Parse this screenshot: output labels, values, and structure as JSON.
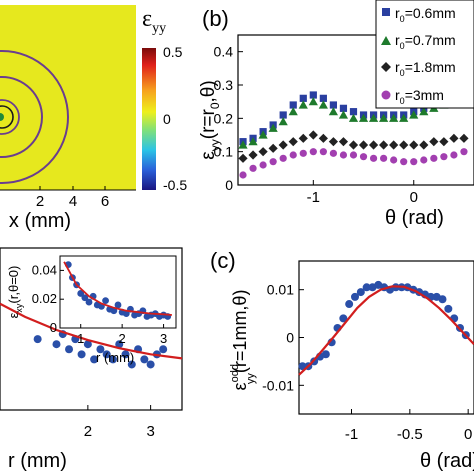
{
  "chart_data": [
    {
      "type": "heatmap",
      "panel": "a",
      "xlabel": "x (mm)",
      "xticks": [
        "2",
        "4",
        "6"
      ],
      "xlim": [
        -1,
        7
      ],
      "colorbar": {
        "label": "ε yy",
        "ticks": [
          "0.5",
          "0",
          "-0.5"
        ],
        "range": [
          -0.5,
          0.5
        ]
      },
      "contour_radii": [
        0.6,
        0.7,
        1.8,
        3
      ],
      "colors": {
        "field": "#e6e81e",
        "contour": "#6a3d8f"
      }
    },
    {
      "type": "scatter",
      "panel": "b",
      "label": "(b)",
      "xlabel": "θ (rad)",
      "ylabel": "εyy(r=r0,θ)",
      "xlim": [
        -1.75,
        0.6
      ],
      "ylim": [
        0,
        0.45
      ],
      "xticks": [
        "-1",
        "0"
      ],
      "yticks": [
        "0",
        "0.1",
        "0.2",
        "0.3",
        "0.4"
      ],
      "legend_position": "top-right",
      "series": [
        {
          "name": "r0=0.6mm",
          "legend": "r",
          "sub": "0",
          "rest": "=0.6mm",
          "marker": "square",
          "color": "#2a3fa0",
          "x": [
            -1.7,
            -1.6,
            -1.5,
            -1.4,
            -1.3,
            -1.2,
            -1.1,
            -1.0,
            -0.9,
            -0.8,
            -0.7,
            -0.6,
            -0.5,
            -0.4,
            -0.3,
            -0.2,
            -0.1,
            0.0,
            0.1,
            0.2,
            0.3,
            0.4,
            0.5
          ],
          "values": [
            0.13,
            0.14,
            0.16,
            0.18,
            0.21,
            0.24,
            0.26,
            0.27,
            0.26,
            0.24,
            0.23,
            0.22,
            0.21,
            0.21,
            0.21,
            0.21,
            0.21,
            0.22,
            0.23,
            0.24,
            0.26,
            0.27,
            0.27
          ]
        },
        {
          "name": "r0=0.7mm",
          "legend": "r",
          "sub": "0",
          "rest": "=0.7mm",
          "marker": "triangle",
          "color": "#1e7a2c",
          "x": [
            -1.7,
            -1.6,
            -1.5,
            -1.4,
            -1.3,
            -1.2,
            -1.1,
            -1.0,
            -0.9,
            -0.8,
            -0.7,
            -0.6,
            -0.5,
            -0.4,
            -0.3,
            -0.2,
            -0.1,
            0.0,
            0.1,
            0.2,
            0.3,
            0.4,
            0.5
          ],
          "values": [
            0.12,
            0.13,
            0.15,
            0.17,
            0.19,
            0.22,
            0.24,
            0.25,
            0.24,
            0.22,
            0.21,
            0.2,
            0.2,
            0.2,
            0.2,
            0.2,
            0.2,
            0.21,
            0.22,
            0.23,
            0.24,
            0.25,
            0.25
          ]
        },
        {
          "name": "r0=1.8mm",
          "legend": "r",
          "sub": "0",
          "rest": "=1.8mm",
          "marker": "diamond",
          "color": "#222222",
          "x": [
            -1.7,
            -1.6,
            -1.5,
            -1.4,
            -1.3,
            -1.2,
            -1.1,
            -1.0,
            -0.9,
            -0.8,
            -0.7,
            -0.6,
            -0.5,
            -0.4,
            -0.3,
            -0.2,
            -0.1,
            0.0,
            0.1,
            0.2,
            0.3,
            0.4,
            0.5
          ],
          "values": [
            0.08,
            0.09,
            0.1,
            0.11,
            0.12,
            0.13,
            0.14,
            0.15,
            0.14,
            0.13,
            0.13,
            0.12,
            0.12,
            0.12,
            0.12,
            0.12,
            0.12,
            0.12,
            0.12,
            0.13,
            0.13,
            0.14,
            0.14
          ]
        },
        {
          "name": "r0=3mm",
          "legend": "r",
          "sub": "0",
          "rest": "=3mm",
          "marker": "circle",
          "color": "#a23fb0",
          "x": [
            -1.7,
            -1.6,
            -1.5,
            -1.4,
            -1.3,
            -1.2,
            -1.1,
            -1.0,
            -0.9,
            -0.8,
            -0.7,
            -0.6,
            -0.5,
            -0.4,
            -0.3,
            -0.2,
            -0.1,
            0.0,
            0.1,
            0.2,
            0.3,
            0.4,
            0.5
          ],
          "values": [
            0.03,
            0.05,
            0.06,
            0.07,
            0.08,
            0.09,
            0.095,
            0.1,
            0.1,
            0.095,
            0.09,
            0.09,
            0.085,
            0.08,
            0.08,
            0.075,
            0.07,
            0.07,
            0.075,
            0.08,
            0.085,
            0.09,
            0.1
          ]
        }
      ]
    },
    {
      "type": "scatter",
      "panel": "d",
      "xlabel": "r (mm)",
      "xlim": [
        0.6,
        3.5
      ],
      "ylim": [
        -0.004,
        0.012
      ],
      "xticks": [
        "2",
        "3"
      ],
      "series": [
        {
          "name": "data",
          "marker": "circle",
          "color": "#2a4fa8",
          "x": [
            0.7,
            0.8,
            0.9,
            1.0,
            1.1,
            1.2,
            1.3,
            1.4,
            1.5,
            1.6,
            1.7,
            1.8,
            1.9,
            2.0,
            2.1,
            2.2,
            2.3,
            2.4,
            2.5,
            2.6,
            2.7,
            2.8,
            2.9,
            3.0,
            3.1,
            3.2
          ],
          "values": [
            0.006,
            0.005,
            0.0055,
            0.004,
            0.0045,
            0.003,
            0.005,
            0.004,
            0.0025,
            0.0035,
            0.002,
            0.003,
            0.0015,
            0.0025,
            0.001,
            0.002,
            0.0015,
            0.001,
            0.0025,
            0.0015,
            0.0005,
            0.002,
            0.001,
            0.0005,
            0.0015,
            0.002
          ]
        },
        {
          "name": "fit",
          "type": "line",
          "color": "#d21e1e",
          "x": [
            0.6,
            1.0,
            1.5,
            2.0,
            2.5,
            3.0,
            3.5
          ],
          "values": [
            0.0065,
            0.0052,
            0.0039,
            0.0029,
            0.0021,
            0.0015,
            0.0011
          ]
        }
      ],
      "inset": {
        "ylabel": "εxy(r,θ=0)",
        "xlabel": "r (mm)",
        "xticks": [
          "1",
          "2",
          "3"
        ],
        "yticks": [
          "0.04",
          "0.02",
          "0"
        ],
        "xlim": [
          0.5,
          3.3
        ],
        "ylim": [
          0,
          0.05
        ],
        "points": {
          "x": [
            0.7,
            0.8,
            0.9,
            1.0,
            1.1,
            1.2,
            1.3,
            1.4,
            1.5,
            1.6,
            1.7,
            1.8,
            1.9,
            2.0,
            2.1,
            2.2,
            2.3,
            2.4,
            2.5,
            2.6,
            2.7,
            2.8,
            2.9,
            3.0,
            3.1
          ],
          "values": [
            0.044,
            0.035,
            0.03,
            0.024,
            0.021,
            0.018,
            0.022,
            0.016,
            0.015,
            0.019,
            0.013,
            0.012,
            0.016,
            0.011,
            0.01,
            0.013,
            0.009,
            0.01,
            0.012,
            0.008,
            0.009,
            0.01,
            0.008,
            0.009,
            0.008
          ]
        },
        "fit": {
          "x": [
            0.6,
            0.9,
            1.2,
            1.5,
            1.8,
            2.1,
            2.4,
            2.7,
            3.0,
            3.2
          ],
          "values": [
            0.046,
            0.03,
            0.022,
            0.017,
            0.014,
            0.012,
            0.011,
            0.01,
            0.0095,
            0.009
          ]
        }
      }
    },
    {
      "type": "scatter",
      "panel": "c",
      "label": "(c)",
      "xlabel": "θ (rad)",
      "ylabel": "εodd yy(r=1mm,θ)",
      "xlim": [
        -1.45,
        0.05
      ],
      "ylim": [
        -0.016,
        0.016
      ],
      "xticks": [
        "-1",
        "-0.5",
        "0"
      ],
      "yticks": [
        "0.01",
        "0",
        "-0.01"
      ],
      "series": [
        {
          "name": "data",
          "marker": "circle",
          "color": "#2a4fa8",
          "x": [
            -1.42,
            -1.37,
            -1.32,
            -1.27,
            -1.22,
            -1.17,
            -1.12,
            -1.07,
            -1.02,
            -0.97,
            -0.92,
            -0.87,
            -0.82,
            -0.77,
            -0.72,
            -0.67,
            -0.62,
            -0.57,
            -0.52,
            -0.47,
            -0.42,
            -0.37,
            -0.32,
            -0.27,
            -0.22,
            -0.17,
            -0.12,
            -0.07,
            -0.02
          ],
          "values": [
            -0.006,
            -0.006,
            -0.005,
            -0.004,
            -0.0035,
            -0.001,
            0.002,
            0.004,
            0.007,
            0.0085,
            0.0095,
            0.0105,
            0.0105,
            0.011,
            0.0105,
            0.01,
            0.0105,
            0.0105,
            0.0105,
            0.01,
            0.0095,
            0.009,
            0.0085,
            0.0085,
            0.008,
            0.006,
            0.004,
            0.002,
            0.0005
          ]
        },
        {
          "name": "fit",
          "type": "line",
          "color": "#d21e1e",
          "x": [
            -1.45,
            -1.35,
            -1.25,
            -1.15,
            -1.05,
            -0.95,
            -0.85,
            -0.75,
            -0.65,
            -0.55,
            -0.45,
            -0.35,
            -0.25,
            -0.15,
            -0.05,
            0.05
          ],
          "values": [
            -0.0078,
            -0.0055,
            -0.0027,
            0.0002,
            0.0032,
            0.0062,
            0.0085,
            0.01,
            0.0107,
            0.0106,
            0.0097,
            0.0082,
            0.0062,
            0.0038,
            0.0012,
            -0.0014
          ]
        }
      ]
    }
  ]
}
